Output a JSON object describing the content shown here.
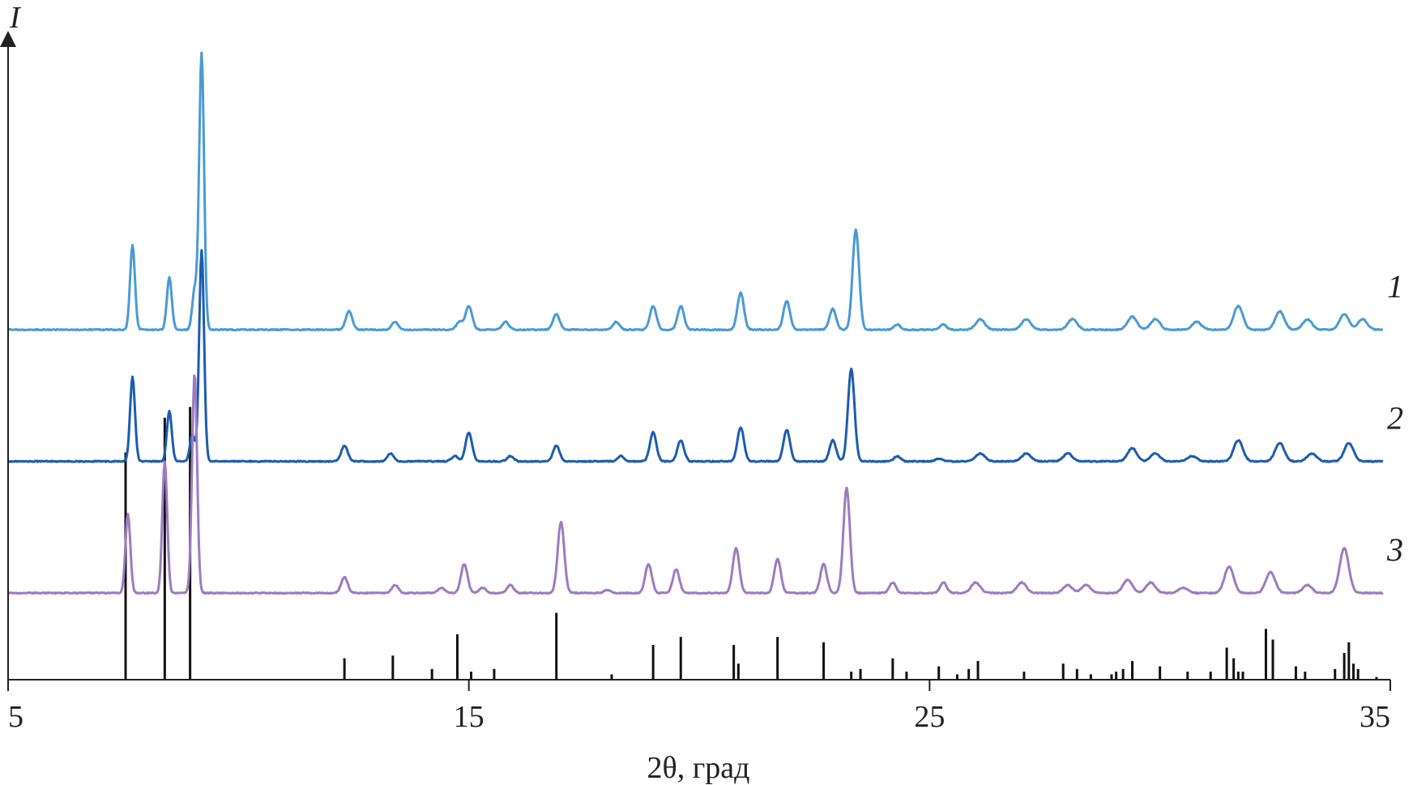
{
  "chart_data": {
    "type": "line",
    "xlabel": "2θ, град",
    "ylabel": "I",
    "xlim": [
      5,
      35
    ],
    "xticks": [
      "5",
      "15",
      "25",
      "35"
    ],
    "grid": false,
    "legend": "none",
    "series": [
      {
        "name": "1",
        "color": "#4a9ad6",
        "offset": 1.0,
        "peaks": [
          [
            7.7,
            0.32
          ],
          [
            8.5,
            0.2
          ],
          [
            9.05,
            0.15
          ],
          [
            9.2,
            1.05
          ],
          [
            12.4,
            0.07
          ],
          [
            13.4,
            0.03
          ],
          [
            14.8,
            0.03
          ],
          [
            15.0,
            0.09
          ],
          [
            15.8,
            0.03
          ],
          [
            16.9,
            0.06
          ],
          [
            18.2,
            0.03
          ],
          [
            19.0,
            0.09
          ],
          [
            19.6,
            0.09
          ],
          [
            20.9,
            0.14
          ],
          [
            21.9,
            0.11
          ],
          [
            22.9,
            0.08
          ],
          [
            23.4,
            0.38
          ],
          [
            24.3,
            0.02
          ],
          [
            25.3,
            0.02
          ],
          [
            26.1,
            0.04
          ],
          [
            27.1,
            0.04
          ],
          [
            28.1,
            0.04
          ],
          [
            29.4,
            0.05
          ],
          [
            29.9,
            0.04
          ],
          [
            30.8,
            0.03
          ],
          [
            31.7,
            0.09
          ],
          [
            32.6,
            0.07
          ],
          [
            33.2,
            0.04
          ],
          [
            34.0,
            0.06
          ],
          [
            34.4,
            0.04
          ]
        ]
      },
      {
        "name": "2",
        "color": "#1c5cb0",
        "offset": 0.5,
        "peaks": [
          [
            7.7,
            0.32
          ],
          [
            8.5,
            0.19
          ],
          [
            9.0,
            0.1
          ],
          [
            9.2,
            0.8
          ],
          [
            12.3,
            0.06
          ],
          [
            13.3,
            0.03
          ],
          [
            14.7,
            0.02
          ],
          [
            15.0,
            0.11
          ],
          [
            15.9,
            0.02
          ],
          [
            16.9,
            0.06
          ],
          [
            18.3,
            0.02
          ],
          [
            19.0,
            0.11
          ],
          [
            19.6,
            0.08
          ],
          [
            20.9,
            0.13
          ],
          [
            21.9,
            0.12
          ],
          [
            22.9,
            0.08
          ],
          [
            23.3,
            0.35
          ],
          [
            24.3,
            0.02
          ],
          [
            25.2,
            0.01
          ],
          [
            26.1,
            0.03
          ],
          [
            27.1,
            0.03
          ],
          [
            28.0,
            0.03
          ],
          [
            29.4,
            0.05
          ],
          [
            29.9,
            0.03
          ],
          [
            30.7,
            0.02
          ],
          [
            31.7,
            0.08
          ],
          [
            32.6,
            0.07
          ],
          [
            33.3,
            0.03
          ],
          [
            34.1,
            0.07
          ]
        ]
      },
      {
        "name": "3",
        "color": "#9b7cc1",
        "offset": 0.0,
        "peaks": [
          [
            7.6,
            0.3
          ],
          [
            8.4,
            0.5
          ],
          [
            9.0,
            0.05
          ],
          [
            9.05,
            0.8
          ],
          [
            12.3,
            0.06
          ],
          [
            13.4,
            0.03
          ],
          [
            14.4,
            0.02
          ],
          [
            14.9,
            0.11
          ],
          [
            15.3,
            0.02
          ],
          [
            15.9,
            0.03
          ],
          [
            17.0,
            0.27
          ],
          [
            18.0,
            0.01
          ],
          [
            18.9,
            0.11
          ],
          [
            19.5,
            0.09
          ],
          [
            20.8,
            0.17
          ],
          [
            21.7,
            0.13
          ],
          [
            22.7,
            0.11
          ],
          [
            23.2,
            0.4
          ],
          [
            24.2,
            0.04
          ],
          [
            25.3,
            0.04
          ],
          [
            26.0,
            0.04
          ],
          [
            27.0,
            0.04
          ],
          [
            28.0,
            0.03
          ],
          [
            28.4,
            0.03
          ],
          [
            29.3,
            0.05
          ],
          [
            29.8,
            0.04
          ],
          [
            30.5,
            0.02
          ],
          [
            31.5,
            0.1
          ],
          [
            32.4,
            0.08
          ],
          [
            33.2,
            0.03
          ],
          [
            34.0,
            0.17
          ]
        ]
      }
    ],
    "reference_bars": [
      [
        7.55,
        0.85
      ],
      [
        8.4,
        0.98
      ],
      [
        8.95,
        1.02
      ],
      [
        12.3,
        0.08
      ],
      [
        13.35,
        0.09
      ],
      [
        14.2,
        0.04
      ],
      [
        14.75,
        0.17
      ],
      [
        15.05,
        0.03
      ],
      [
        15.55,
        0.04
      ],
      [
        16.9,
        0.25
      ],
      [
        18.1,
        0.02
      ],
      [
        19.0,
        0.13
      ],
      [
        19.6,
        0.16
      ],
      [
        20.75,
        0.13
      ],
      [
        20.85,
        0.06
      ],
      [
        21.7,
        0.16
      ],
      [
        22.7,
        0.14
      ],
      [
        23.3,
        0.03
      ],
      [
        23.5,
        0.04
      ],
      [
        24.2,
        0.08
      ],
      [
        24.5,
        0.03
      ],
      [
        25.2,
        0.05
      ],
      [
        25.6,
        0.02
      ],
      [
        25.85,
        0.04
      ],
      [
        26.05,
        0.07
      ],
      [
        27.05,
        0.03
      ],
      [
        27.9,
        0.06
      ],
      [
        28.2,
        0.04
      ],
      [
        28.5,
        0.02
      ],
      [
        28.95,
        0.02
      ],
      [
        29.05,
        0.03
      ],
      [
        29.2,
        0.04
      ],
      [
        29.4,
        0.07
      ],
      [
        30.0,
        0.05
      ],
      [
        30.6,
        0.03
      ],
      [
        31.1,
        0.03
      ],
      [
        31.45,
        0.12
      ],
      [
        31.6,
        0.08
      ],
      [
        31.7,
        0.03
      ],
      [
        31.8,
        0.03
      ],
      [
        32.3,
        0.19
      ],
      [
        32.45,
        0.15
      ],
      [
        32.95,
        0.05
      ],
      [
        33.15,
        0.03
      ],
      [
        33.8,
        0.04
      ],
      [
        34.0,
        0.1
      ],
      [
        34.1,
        0.14
      ],
      [
        34.2,
        0.06
      ],
      [
        34.3,
        0.04
      ],
      [
        34.7,
        0.01
      ]
    ]
  }
}
